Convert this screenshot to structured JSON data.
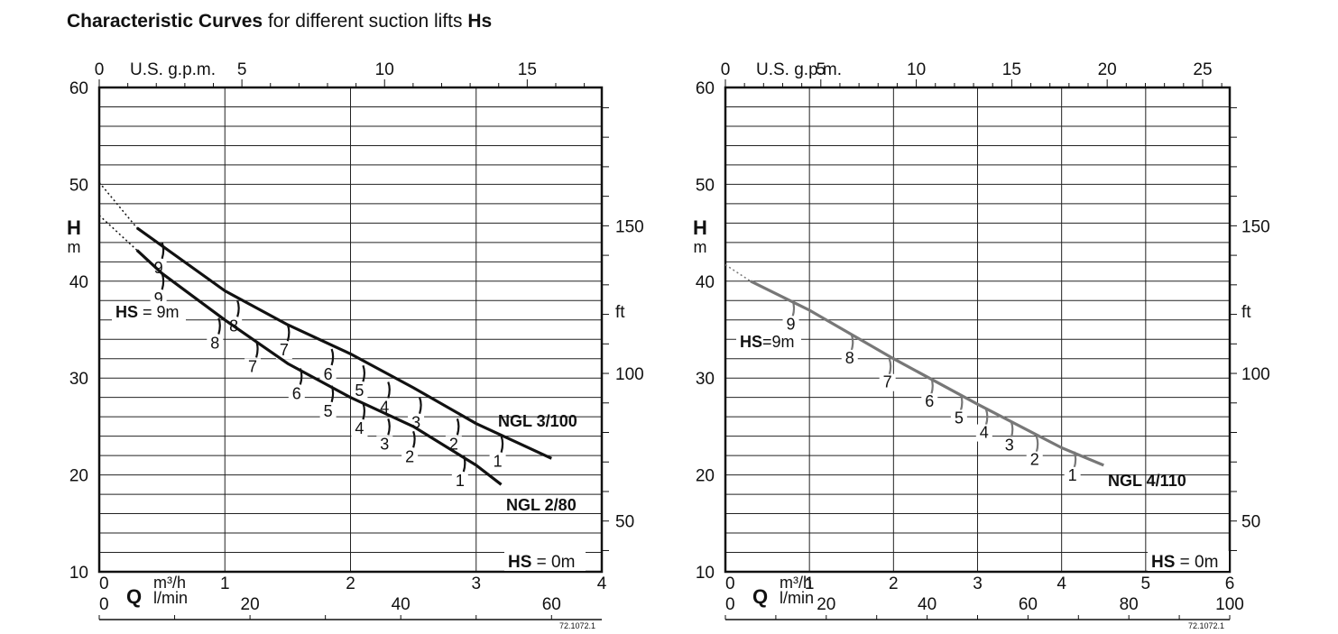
{
  "title": {
    "bold1": "Characteristic Curves",
    "normal": " for different suction lifts ",
    "bold2": "Hs"
  },
  "chart_data": [
    {
      "type": "line",
      "title": "",
      "y_axis": {
        "label": "H",
        "unit": "m",
        "min": 10,
        "max": 60,
        "ticks": [
          10,
          20,
          30,
          40,
          50,
          60
        ]
      },
      "y2_axis": {
        "label": "ft",
        "ticks": [
          50,
          100,
          150
        ]
      },
      "x_axis": {
        "label": "Q",
        "unit": "m³/h",
        "min": 0,
        "max": 4,
        "ticks": [
          0,
          1,
          2,
          3,
          4
        ]
      },
      "x2_axis": {
        "unit": "l/min",
        "ticks": [
          0,
          20,
          40,
          60
        ]
      },
      "top_axis": {
        "unit": "U.S. g.p.m.",
        "ticks": [
          0,
          5,
          10,
          15
        ]
      },
      "series": [
        {
          "name": "NGL 3/100",
          "color": "#111111",
          "x": [
            0,
            0.3,
            1.0,
            1.5,
            2.0,
            2.5,
            3.0,
            3.6
          ],
          "y": [
            50.2,
            45.5,
            39.0,
            35.5,
            32.5,
            29.0,
            25.3,
            21.7
          ],
          "hs_marks": [
            {
              "label": "9",
              "x": 0.5,
              "y": 44.0
            },
            {
              "label": "8",
              "x": 1.1,
              "y": 38.0
            },
            {
              "label": "7",
              "x": 1.5,
              "y": 35.5
            },
            {
              "label": "6",
              "x": 1.85,
              "y": 33.0
            },
            {
              "label": "5",
              "x": 2.1,
              "y": 31.3
            },
            {
              "label": "4",
              "x": 2.3,
              "y": 29.6
            },
            {
              "label": "3",
              "x": 2.55,
              "y": 28.0
            },
            {
              "label": "2",
              "x": 2.85,
              "y": 25.8
            },
            {
              "label": "1",
              "x": 3.2,
              "y": 24.0
            }
          ]
        },
        {
          "name": "NGL 2/80",
          "color": "#111111",
          "x": [
            0,
            0.3,
            0.5,
            1.0,
            1.5,
            2.0,
            2.5,
            3.0,
            3.2
          ],
          "y": [
            46.8,
            43.2,
            40.8,
            36.0,
            31.5,
            28.0,
            25.0,
            21.0,
            19.0
          ],
          "hs_marks": [
            {
              "label": "9",
              "x": 0.5,
              "y": 40.8
            },
            {
              "label": "8",
              "x": 0.95,
              "y": 36.2
            },
            {
              "label": "7",
              "x": 1.25,
              "y": 33.8
            },
            {
              "label": "6",
              "x": 1.6,
              "y": 31.0
            },
            {
              "label": "5",
              "x": 1.85,
              "y": 29.2
            },
            {
              "label": "4",
              "x": 2.1,
              "y": 27.4
            },
            {
              "label": "3",
              "x": 2.3,
              "y": 25.8
            },
            {
              "label": "2",
              "x": 2.5,
              "y": 24.5
            },
            {
              "label": "1",
              "x": 2.9,
              "y": 22.0
            }
          ]
        }
      ],
      "annotations": [
        {
          "bold": "HS",
          "text": " = 9m"
        },
        {
          "bold": "HS",
          "text": " = 0m"
        }
      ],
      "figure_code": "72.1072.1"
    },
    {
      "type": "line",
      "title": "",
      "y_axis": {
        "label": "H",
        "unit": "m",
        "min": 10,
        "max": 60,
        "ticks": [
          10,
          20,
          30,
          40,
          50,
          60
        ]
      },
      "y2_axis": {
        "label": "ft",
        "ticks": [
          50,
          100,
          150
        ]
      },
      "x_axis": {
        "label": "Q",
        "unit": "m³/h",
        "min": 0,
        "max": 6,
        "ticks": [
          0,
          1,
          2,
          3,
          4,
          5,
          6
        ]
      },
      "x2_axis": {
        "unit": "l/min",
        "ticks": [
          0,
          20,
          40,
          60,
          80,
          100
        ]
      },
      "top_axis": {
        "unit": "U.S. g.p.m.",
        "ticks": [
          0,
          5,
          10,
          15,
          20,
          25
        ]
      },
      "series": [
        {
          "name": "NGL 4/110",
          "color": "#777777",
          "x": [
            0,
            0.3,
            1.0,
            2.0,
            3.0,
            4.0,
            4.5
          ],
          "y": [
            41.7,
            40.0,
            37.0,
            32.0,
            27.3,
            22.8,
            21.0
          ],
          "hs_marks": [
            {
              "label": "9",
              "x": 0.8,
              "y": 38.0
            },
            {
              "label": "8",
              "x": 1.5,
              "y": 34.5
            },
            {
              "label": "7",
              "x": 1.95,
              "y": 32.0
            },
            {
              "label": "6",
              "x": 2.45,
              "y": 30.0
            },
            {
              "label": "5",
              "x": 2.8,
              "y": 28.3
            },
            {
              "label": "4",
              "x": 3.1,
              "y": 26.8
            },
            {
              "label": "3",
              "x": 3.4,
              "y": 25.5
            },
            {
              "label": "2",
              "x": 3.7,
              "y": 24.0
            },
            {
              "label": "1",
              "x": 4.15,
              "y": 22.4
            }
          ]
        }
      ],
      "annotations": [
        {
          "bold": "HS",
          "text": "=9m"
        },
        {
          "bold": "HS",
          "text": " = 0m"
        }
      ],
      "figure_code": "72.1072.1"
    }
  ]
}
